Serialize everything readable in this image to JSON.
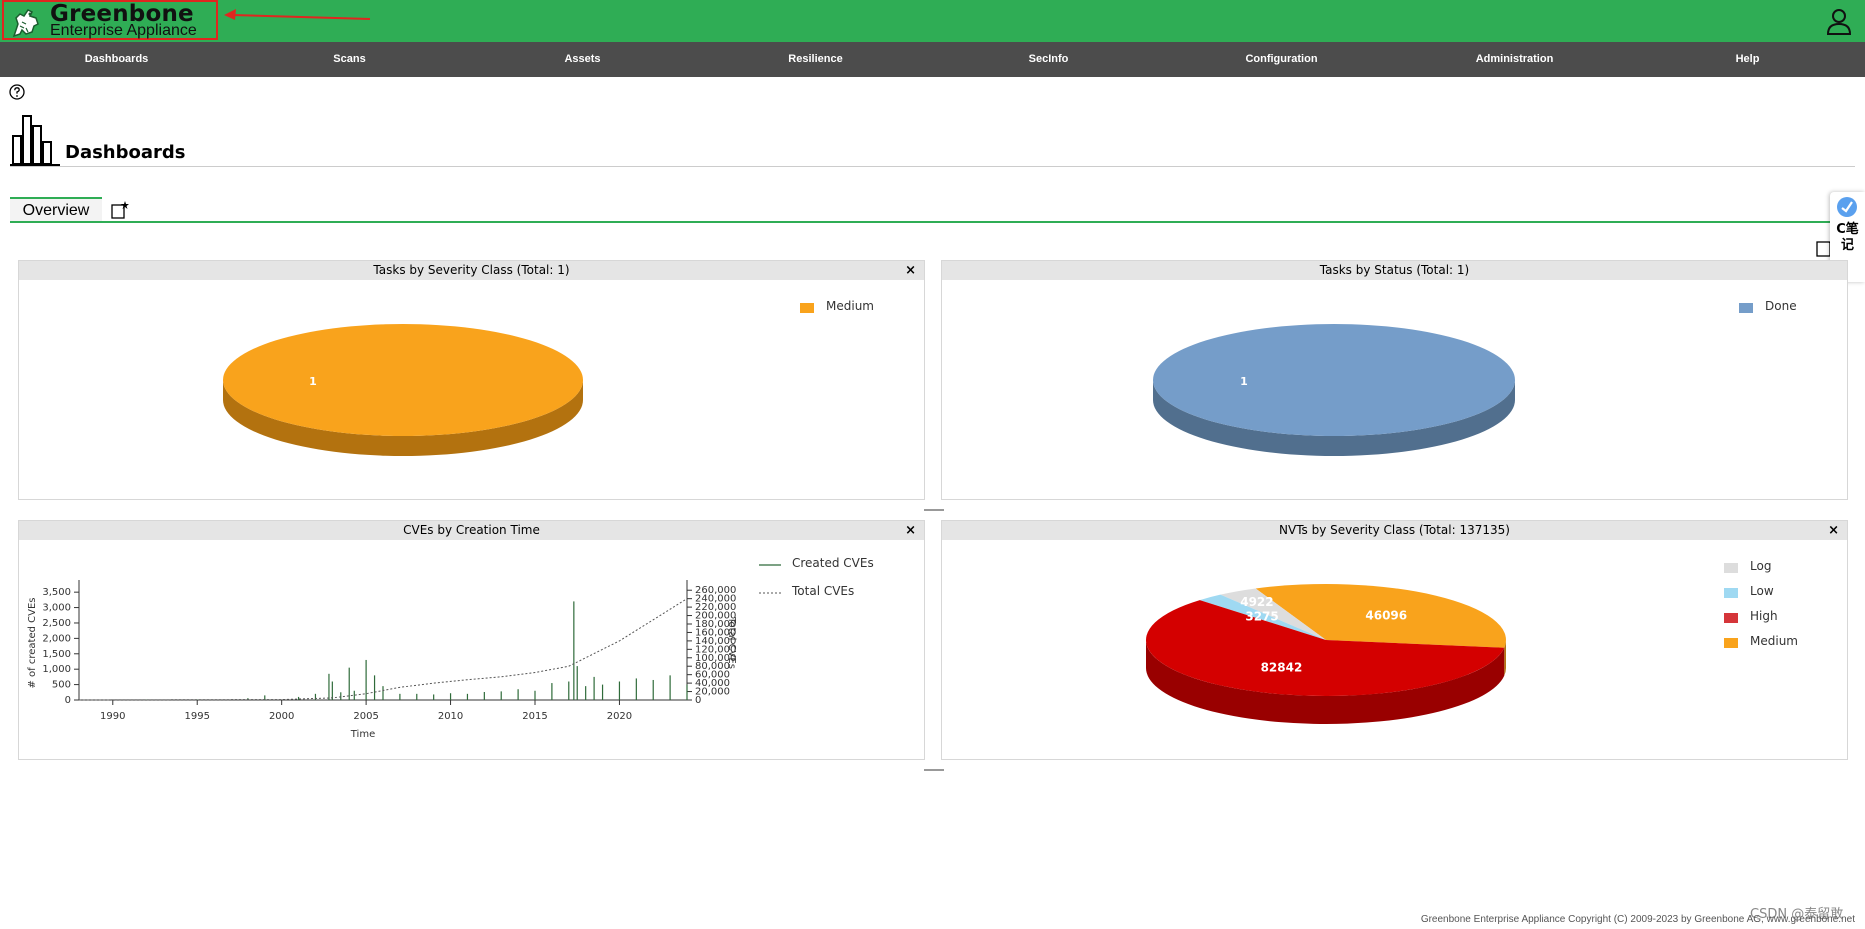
{
  "header": {
    "logo_title": "Greenbone",
    "logo_subtitle": "Enterprise Appliance"
  },
  "nav": [
    "Dashboards",
    "Scans",
    "Assets",
    "Resilience",
    "SecInfo",
    "Configuration",
    "Administration",
    "Help"
  ],
  "page": {
    "title": "Dashboards",
    "tab_label": "Overview"
  },
  "side_widget": {
    "label": "C笔记"
  },
  "panels": {
    "severity": {
      "title": "Tasks by Severity Class (Total: 1)",
      "close": "×",
      "legend": [
        {
          "label": "Medium",
          "color": "#f9a31c"
        }
      ],
      "slice_label": "1"
    },
    "status": {
      "title": "Tasks by Status (Total: 1)",
      "close": "×",
      "legend": [
        {
          "label": "Done",
          "color": "#759dc9"
        }
      ],
      "slice_label": "1"
    },
    "cves": {
      "title": "CVEs by Creation Time",
      "close": "×",
      "legend": [
        "Created CVEs",
        "Total CVEs"
      ]
    },
    "nvts": {
      "title": "NVTs by Severity Class (Total: 137135)",
      "close": "×",
      "legend": [
        {
          "label": "Log",
          "color": "#dddddd"
        },
        {
          "label": "Low",
          "color": "#9fd9f2"
        },
        {
          "label": "High",
          "color": "#d5353a"
        },
        {
          "label": "Medium",
          "color": "#f9a31c"
        }
      ]
    }
  },
  "chart_data": [
    {
      "type": "pie",
      "title": "Tasks by Severity Class (Total: 1)",
      "categories": [
        "Medium"
      ],
      "values": [
        1
      ],
      "colors": [
        "#f9a31c"
      ],
      "legend": "top-right"
    },
    {
      "type": "pie",
      "title": "Tasks by Status (Total: 1)",
      "categories": [
        "Done"
      ],
      "values": [
        1
      ],
      "colors": [
        "#759dc9"
      ],
      "legend": "top-right"
    },
    {
      "type": "bar",
      "title": "CVEs by Creation Time",
      "xlabel": "Time",
      "ylabel": "# of created CVEs",
      "y2label": "Total CVEs",
      "xlim": [
        1988,
        2024
      ],
      "ylim": [
        0,
        3700
      ],
      "y2lim": [
        0,
        270000
      ],
      "x_ticks": [
        1990,
        1995,
        2000,
        2005,
        2010,
        2015,
        2020
      ],
      "y_ticks": [
        "0",
        "500",
        "1,000",
        "1,500",
        "2,000",
        "2,500",
        "3,000",
        "3,500"
      ],
      "y2_ticks": [
        "0",
        "20,000",
        "40,000",
        "60,000",
        "80,000",
        "100,000",
        "120,000",
        "140,000",
        "160,000",
        "180,000",
        "200,000",
        "220,000",
        "240,000",
        "260,000"
      ],
      "series": [
        {
          "name": "Created CVEs",
          "x": [
            1988.5,
            1992,
            1995,
            1998,
            1999,
            2001,
            2002,
            2002.8,
            2003,
            2003.5,
            2004,
            2004.3,
            2005,
            2005.5,
            2006,
            2007,
            2008,
            2009,
            2010,
            2011,
            2012,
            2013,
            2014,
            2015,
            2016,
            2017,
            2017.3,
            2017.5,
            2018,
            2018.5,
            2019,
            2020,
            2021,
            2022,
            2023,
            2024
          ],
          "values": [
            5,
            10,
            15,
            60,
            150,
            100,
            200,
            850,
            600,
            250,
            1050,
            300,
            1300,
            800,
            450,
            200,
            200,
            180,
            220,
            200,
            260,
            280,
            350,
            300,
            550,
            600,
            3200,
            1100,
            450,
            750,
            500,
            600,
            700,
            650,
            800,
            500
          ]
        },
        {
          "name": "Total CVEs",
          "x": [
            1988,
            2000,
            2003,
            2005,
            2007,
            2009,
            2011,
            2013,
            2015,
            2017,
            2018,
            2019,
            2020,
            2021,
            2022,
            2023,
            2024
          ],
          "values": [
            0,
            1000,
            5000,
            15000,
            30000,
            40000,
            48000,
            55000,
            65000,
            80000,
            100000,
            120000,
            140000,
            165000,
            190000,
            215000,
            240000
          ]
        }
      ],
      "legend": "top-right"
    },
    {
      "type": "pie",
      "title": "NVTs by Severity Class (Total: 137135)",
      "categories": [
        "Medium",
        "Log",
        "Low",
        "High"
      ],
      "values": [
        46096,
        4922,
        3275,
        82842
      ],
      "colors": [
        "#f9a31c",
        "#dddddd",
        "#9fd9f2",
        "#d40000"
      ],
      "legend": "top-right"
    }
  ],
  "footer": {
    "copyright": "Greenbone Enterprise Appliance Copyright (C) 2009-2023 by Greenbone AG, www.greenbone.net"
  },
  "watermark": "CSDN @泰留敢"
}
